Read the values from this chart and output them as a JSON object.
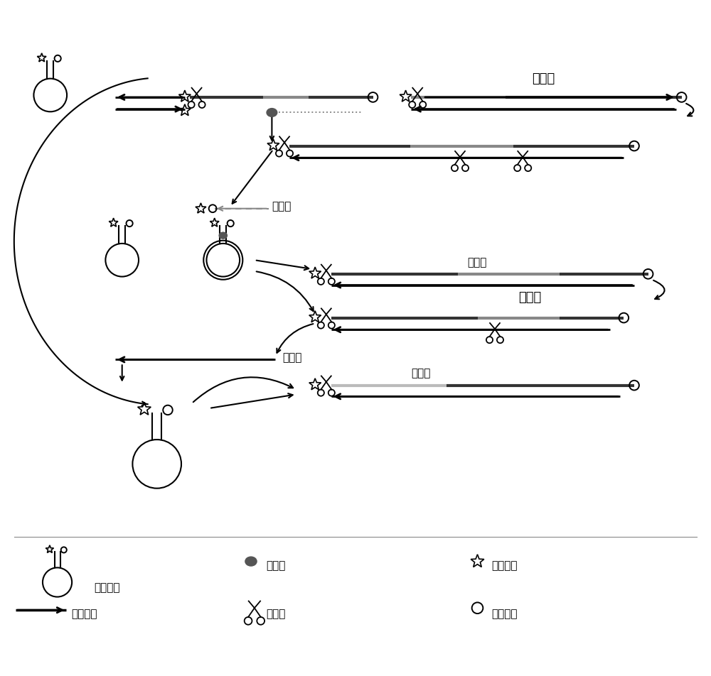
{
  "bg_color": "#ffffff",
  "lc": "#000000",
  "dark_gray": "#333333",
  "mid_gray": "#888888",
  "light_gray": "#bbbbbb",
  "labels": {
    "cycle1": "循环一",
    "cycle2": "循环二",
    "product1": "产物一",
    "product2": "产物二",
    "product3": "产物三",
    "product4": "产物四",
    "legend_mb": "分子信标",
    "legend_target": "目标核酸",
    "legend_pol": "聚合酶",
    "legend_nick": "切刻酶",
    "legend_fluor": "荺光基团",
    "legend_quench": "独灭基团"
  }
}
